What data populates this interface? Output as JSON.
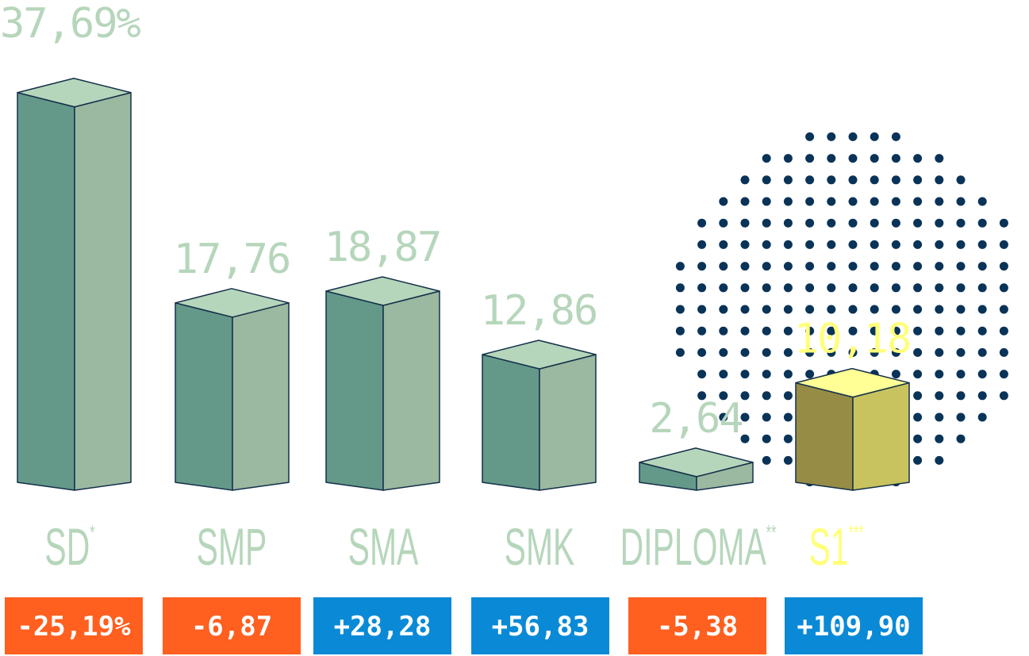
{
  "chart_data": {
    "type": "bar",
    "categories": [
      "SD",
      "SMP",
      "SMA",
      "SMK",
      "DIPLOMA",
      "S1"
    ],
    "category_marks": [
      "*",
      "",
      "",
      "",
      "**",
      "***"
    ],
    "values": [
      37.69,
      17.76,
      18.87,
      12.86,
      2.64,
      10.18
    ],
    "value_labels": [
      "37,69%",
      "17,76",
      "18,87",
      "12,86",
      "2,64",
      "10,18"
    ],
    "changes": [
      -25.19,
      -6.87,
      28.28,
      56.83,
      -5.38,
      109.9
    ],
    "change_labels": [
      "-25,19%",
      "-6,87",
      "+28,28",
      "+56,83",
      "-5,38",
      "+109,90"
    ],
    "highlight_category": "S1"
  },
  "colors": {
    "bar_front": "#64998a",
    "bar_side": "#9bb8a0",
    "bar_top": "#b6d6bb",
    "highlight_front": "#968c46",
    "highlight_side": "#c8c35e",
    "highlight_top": "#ffff96",
    "label": "#b6d6bb",
    "highlight_label": "#ffff7a",
    "negative": "#ff5f1f",
    "positive": "#0a8ad6",
    "dots": "#0a3358",
    "outline": "#14304a"
  }
}
